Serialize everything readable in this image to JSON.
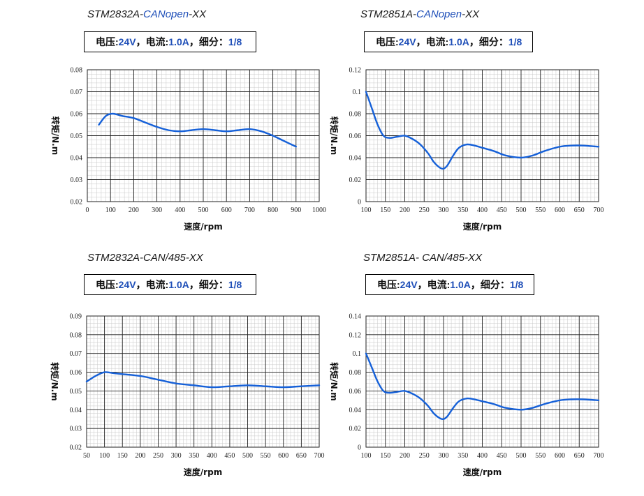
{
  "chart_data": [
    {
      "type": "line",
      "title_parts": [
        "STM2832A-",
        "CANopen",
        "-XX"
      ],
      "params": {
        "voltage_label": "电压:",
        "voltage": "24V",
        "sep1": "，电流:",
        "current": "1.0A",
        "sep2": "，细分：",
        "microstep": "1/8"
      },
      "xlabel": "速度/rpm",
      "ylabel": "转矩/N.m",
      "xlim": [
        0,
        1000
      ],
      "ylim": [
        0.02,
        0.08
      ],
      "xticks": [
        0,
        100,
        200,
        300,
        400,
        500,
        600,
        700,
        800,
        900,
        1000
      ],
      "yticks": [
        0.02,
        0.03,
        0.04,
        0.05,
        0.06,
        0.07,
        0.08
      ],
      "x_minor_step": 20,
      "y_minor_step": 0.002,
      "grid": true,
      "series": [
        {
          "name": "torque",
          "color": "#1560d8",
          "x": [
            50,
            80,
            110,
            150,
            200,
            250,
            300,
            350,
            400,
            450,
            500,
            550,
            600,
            650,
            700,
            750,
            800,
            850,
            900
          ],
          "y": [
            0.055,
            0.059,
            0.06,
            0.059,
            0.058,
            0.056,
            0.054,
            0.0525,
            0.052,
            0.0525,
            0.053,
            0.0525,
            0.052,
            0.0525,
            0.053,
            0.052,
            0.05,
            0.0475,
            0.045
          ]
        }
      ]
    },
    {
      "type": "line",
      "title_parts": [
        "STM2851A-",
        "CANopen",
        "-XX"
      ],
      "params": {
        "voltage_label": "电压:",
        "voltage": "24V",
        "sep1": "，电流:",
        "current": "1.0A",
        "sep2": "，细分：",
        "microstep": "1/8"
      },
      "xlabel": "速度/rpm",
      "ylabel": "转矩/N.m",
      "xlim": [
        100,
        700
      ],
      "ylim": [
        0,
        0.12
      ],
      "xticks": [
        100,
        150,
        200,
        250,
        300,
        350,
        400,
        450,
        500,
        550,
        600,
        650,
        700
      ],
      "yticks": [
        0,
        0.02,
        0.04,
        0.06,
        0.08,
        0.1,
        0.12
      ],
      "x_minor_step": 10,
      "y_minor_step": 0.004,
      "grid": true,
      "series": [
        {
          "name": "torque",
          "color": "#1560d8",
          "x": [
            100,
            115,
            130,
            145,
            160,
            180,
            200,
            220,
            240,
            260,
            275,
            290,
            300,
            310,
            325,
            340,
            360,
            380,
            400,
            430,
            460,
            500,
            530,
            560,
            600,
            630,
            660,
            700
          ],
          "y": [
            0.1,
            0.085,
            0.07,
            0.06,
            0.058,
            0.059,
            0.06,
            0.057,
            0.052,
            0.044,
            0.036,
            0.031,
            0.03,
            0.033,
            0.042,
            0.049,
            0.052,
            0.051,
            0.049,
            0.046,
            0.042,
            0.04,
            0.042,
            0.046,
            0.05,
            0.051,
            0.051,
            0.05
          ]
        }
      ]
    },
    {
      "type": "line",
      "title_parts": [
        "STM2832A-CAN/485-XX",
        "",
        ""
      ],
      "params": {
        "voltage_label": "电压:",
        "voltage": "24V",
        "sep1": "，电流:",
        "current": "1.0A",
        "sep2": "，细分：",
        "microstep": "1/8"
      },
      "xlabel": "速度/rpm",
      "ylabel": "转矩/N.m",
      "xlim": [
        50,
        700
      ],
      "ylim": [
        0.02,
        0.09
      ],
      "xticks": [
        50,
        100,
        150,
        200,
        250,
        300,
        350,
        400,
        450,
        500,
        550,
        600,
        650,
        700
      ],
      "yticks": [
        0.02,
        0.03,
        0.04,
        0.05,
        0.06,
        0.07,
        0.08,
        0.09
      ],
      "x_minor_step": 10,
      "y_minor_step": 0.002,
      "grid": true,
      "series": [
        {
          "name": "torque",
          "color": "#1560d8",
          "x": [
            50,
            75,
            100,
            125,
            150,
            200,
            250,
            300,
            350,
            400,
            450,
            500,
            550,
            600,
            650,
            700
          ],
          "y": [
            0.055,
            0.058,
            0.06,
            0.0595,
            0.059,
            0.058,
            0.056,
            0.054,
            0.053,
            0.052,
            0.0525,
            0.053,
            0.0525,
            0.052,
            0.0525,
            0.053
          ]
        }
      ]
    },
    {
      "type": "line",
      "title_parts": [
        "STM2851A- CAN/485-XX",
        "",
        ""
      ],
      "params": {
        "voltage_label": "电压:",
        "voltage": "24V",
        "sep1": "，电流:",
        "current": "1.0A",
        "sep2": "，细分：",
        "microstep": "1/8"
      },
      "xlabel": "速度/rpm",
      "ylabel": "转矩/N.m",
      "xlim": [
        100,
        700
      ],
      "ylim": [
        0,
        0.14
      ],
      "xticks": [
        100,
        150,
        200,
        250,
        300,
        350,
        400,
        450,
        500,
        550,
        600,
        650,
        700
      ],
      "yticks": [
        0,
        0.02,
        0.04,
        0.06,
        0.08,
        0.1,
        0.12,
        0.14
      ],
      "x_minor_step": 10,
      "y_minor_step": 0.004,
      "grid": true,
      "series": [
        {
          "name": "torque",
          "color": "#1560d8",
          "x": [
            100,
            115,
            130,
            145,
            160,
            180,
            200,
            220,
            240,
            260,
            275,
            290,
            300,
            310,
            325,
            340,
            360,
            380,
            400,
            430,
            460,
            500,
            530,
            560,
            600,
            630,
            660,
            700
          ],
          "y": [
            0.1,
            0.085,
            0.07,
            0.06,
            0.058,
            0.059,
            0.06,
            0.057,
            0.052,
            0.044,
            0.036,
            0.031,
            0.03,
            0.033,
            0.042,
            0.049,
            0.052,
            0.051,
            0.049,
            0.046,
            0.042,
            0.04,
            0.042,
            0.046,
            0.05,
            0.051,
            0.051,
            0.05
          ]
        }
      ]
    }
  ]
}
